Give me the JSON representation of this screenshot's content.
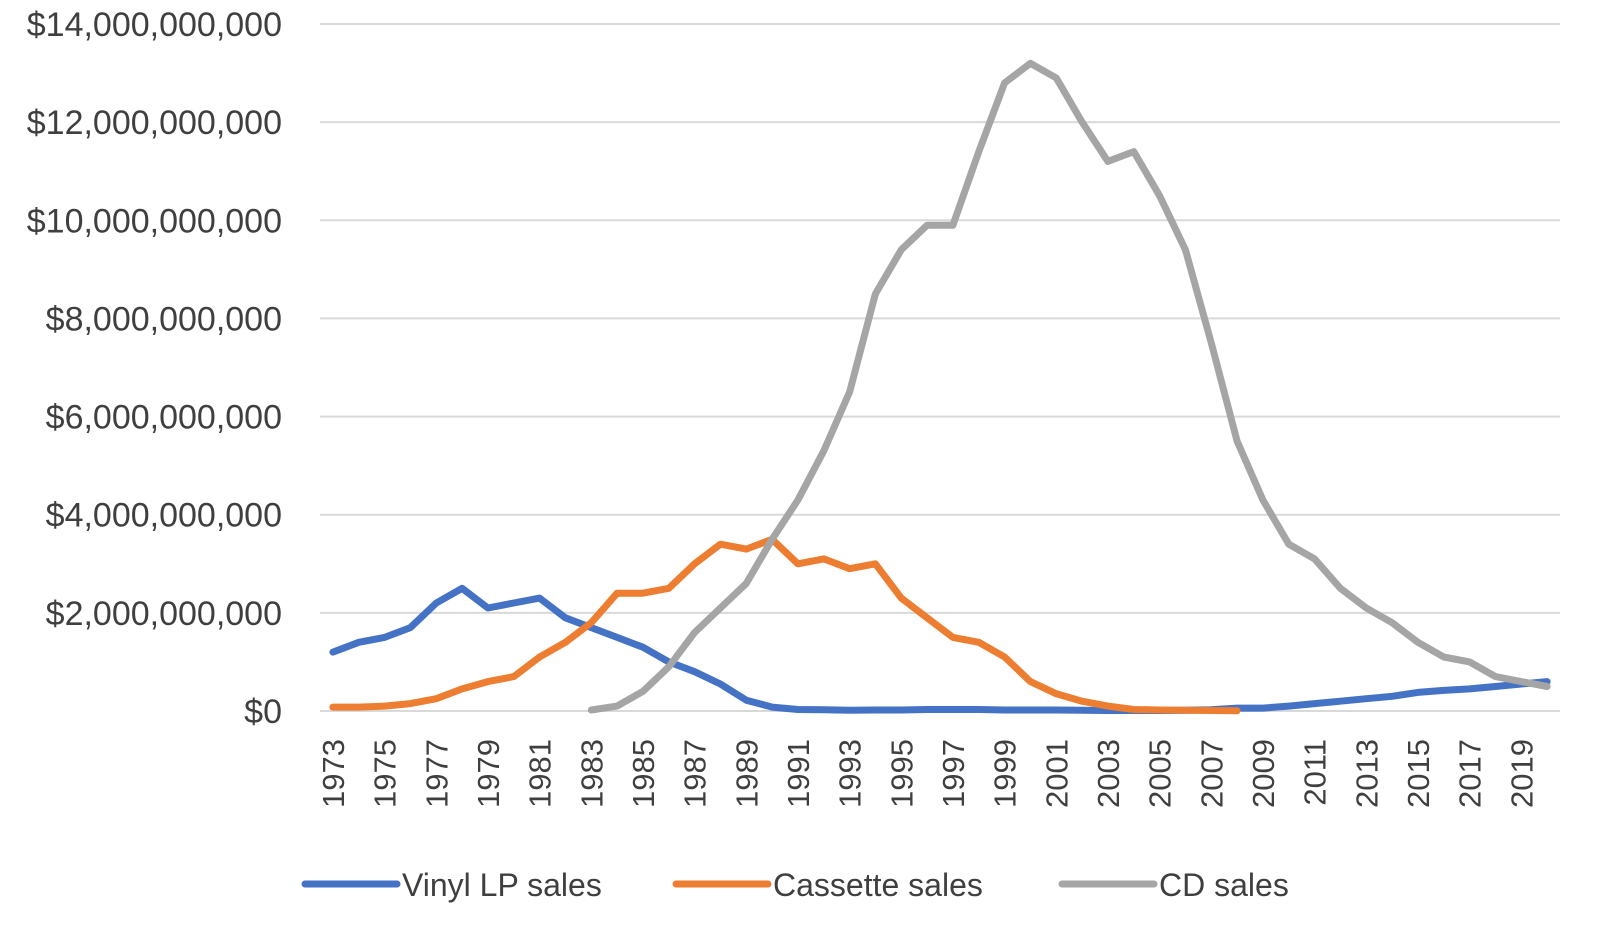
{
  "chart_data": {
    "type": "line",
    "title": "",
    "xlabel": "",
    "ylabel": "",
    "x": [
      1973,
      1974,
      1975,
      1976,
      1977,
      1978,
      1979,
      1980,
      1981,
      1982,
      1983,
      1984,
      1985,
      1986,
      1987,
      1988,
      1989,
      1990,
      1991,
      1992,
      1993,
      1994,
      1995,
      1996,
      1997,
      1998,
      1999,
      2000,
      2001,
      2002,
      2003,
      2004,
      2005,
      2006,
      2007,
      2008,
      2009,
      2010,
      2011,
      2012,
      2013,
      2014,
      2015,
      2016,
      2017,
      2018,
      2019,
      2020
    ],
    "x_tick_labels": [
      "1973",
      "1975",
      "1977",
      "1979",
      "1981",
      "1983",
      "1985",
      "1987",
      "1989",
      "1991",
      "1993",
      "1995",
      "1997",
      "1999",
      "2001",
      "2003",
      "2005",
      "2007",
      "2009",
      "2011",
      "2013",
      "2015",
      "2017",
      "2019"
    ],
    "ylim": [
      0,
      14000000000
    ],
    "y_tick_values": [
      0,
      2000000000,
      4000000000,
      6000000000,
      8000000000,
      10000000000,
      12000000000,
      14000000000
    ],
    "y_tick_labels": [
      "$0",
      "$2,000,000,000",
      "$4,000,000,000",
      "$6,000,000,000",
      "$8,000,000,000",
      "$10,000,000,000",
      "$12,000,000,000",
      "$14,000,000,000"
    ],
    "grid": true,
    "legend_position": "bottom",
    "series": [
      {
        "name": "Vinyl LP sales",
        "color": "#4472c4",
        "values": [
          1200000000,
          1400000000,
          1500000000,
          1700000000,
          2200000000,
          2500000000,
          2100000000,
          2200000000,
          2300000000,
          1900000000,
          1700000000,
          1500000000,
          1300000000,
          1000000000,
          800000000,
          550000000,
          220000000,
          80000000,
          30000000,
          25000000,
          15000000,
          20000000,
          20000000,
          30000000,
          30000000,
          30000000,
          20000000,
          20000000,
          20000000,
          15000000,
          10000000,
          10000000,
          10000000,
          15000000,
          25000000,
          60000000,
          60000000,
          100000000,
          150000000,
          200000000,
          250000000,
          300000000,
          380000000,
          420000000,
          450000000,
          500000000,
          550000000,
          600000000
        ]
      },
      {
        "name": "Cassette sales",
        "color": "#ed7d31",
        "values": [
          80000000,
          80000000,
          100000000,
          150000000,
          250000000,
          450000000,
          600000000,
          700000000,
          1100000000,
          1400000000,
          1800000000,
          2400000000,
          2400000000,
          2500000000,
          3000000000,
          3400000000,
          3300000000,
          3500000000,
          3000000000,
          3100000000,
          2900000000,
          3000000000,
          2300000000,
          1900000000,
          1500000000,
          1400000000,
          1100000000,
          600000000,
          350000000,
          200000000,
          100000000,
          30000000,
          20000000,
          15000000,
          10000000,
          5000000,
          null,
          null,
          null,
          null,
          null,
          null,
          null,
          null,
          null,
          null,
          null,
          null
        ]
      },
      {
        "name": "CD sales",
        "color": "#a5a5a5",
        "values": [
          null,
          null,
          null,
          null,
          null,
          null,
          null,
          null,
          null,
          null,
          20000000,
          100000000,
          400000000,
          900000000,
          1600000000,
          2100000000,
          2600000000,
          3500000000,
          4300000000,
          5300000000,
          6500000000,
          8500000000,
          9400000000,
          9900000000,
          9900000000,
          11400000000,
          12800000000,
          13200000000,
          12900000000,
          12000000000,
          11200000000,
          11400000000,
          10500000000,
          9400000000,
          7500000000,
          5500000000,
          4300000000,
          3400000000,
          3100000000,
          2500000000,
          2100000000,
          1800000000,
          1400000000,
          1100000000,
          1000000000,
          700000000,
          600000000,
          500000000
        ]
      }
    ]
  }
}
